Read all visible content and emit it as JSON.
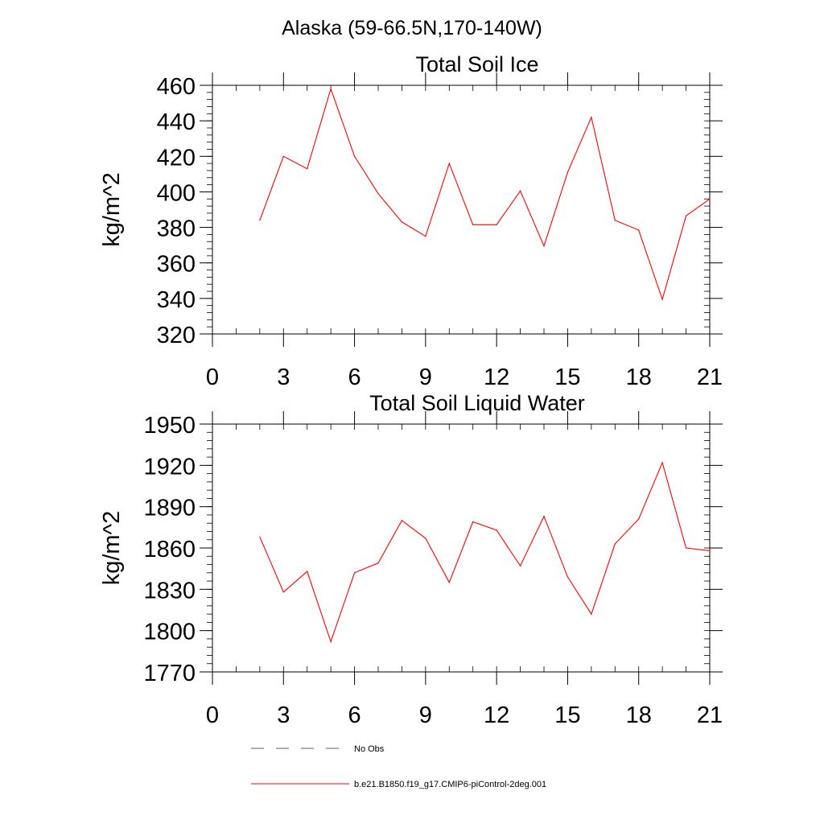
{
  "figure": {
    "suptitle": "Alaska (59-66.5N,170-140W)"
  },
  "chart_data": [
    {
      "type": "line",
      "title": "Total Soil Ice",
      "xlabel": "",
      "ylabel": "kg/m^2",
      "xlim": [
        0,
        21
      ],
      "ylim": [
        320,
        460
      ],
      "xticks": [
        0,
        3,
        6,
        9,
        12,
        15,
        18,
        21
      ],
      "yticks": [
        320,
        340,
        360,
        380,
        400,
        420,
        440,
        460
      ],
      "grid": false,
      "series": [
        {
          "name": "b.e21.B1850.f19_g17.CMIP6-piControl-2deg.001",
          "color": "#ff0000",
          "x": [
            2,
            3,
            4,
            5,
            6,
            7,
            8,
            9,
            10,
            11,
            12,
            13,
            14,
            15,
            16,
            17,
            18,
            19,
            20,
            21
          ],
          "y": [
            384,
            420,
            413,
            458,
            420,
            399,
            383,
            375,
            416,
            381.5,
            381.5,
            400.5,
            369.5,
            411,
            442,
            384,
            378.5,
            339.5,
            386.5,
            396
          ]
        }
      ]
    },
    {
      "type": "line",
      "title": "Total Soil Liquid Water",
      "xlabel": "",
      "ylabel": "kg/m^2",
      "xlim": [
        0,
        21
      ],
      "ylim": [
        1770,
        1950
      ],
      "xticks": [
        0,
        3,
        6,
        9,
        12,
        15,
        18,
        21
      ],
      "yticks": [
        1770,
        1800,
        1830,
        1860,
        1890,
        1920,
        1950
      ],
      "grid": false,
      "series": [
        {
          "name": "b.e21.B1850.f19_g17.CMIP6-piControl-2deg.001",
          "color": "#ff0000",
          "x": [
            2,
            3,
            4,
            5,
            6,
            7,
            8,
            9,
            10,
            11,
            12,
            13,
            14,
            15,
            16,
            17,
            18,
            19,
            20,
            21
          ],
          "y": [
            1868,
            1828,
            1843,
            1792,
            1842,
            1849,
            1880,
            1867,
            1835,
            1879,
            1873,
            1847,
            1883,
            1839,
            1812,
            1863,
            1881,
            1922,
            1860,
            1858
          ]
        }
      ]
    }
  ],
  "legend": {
    "placement": "bottom-left",
    "items": [
      {
        "label": "No Obs",
        "color": "#5a5a8c",
        "style": "dashed"
      },
      {
        "label": "b.e21.B1850.f19_g17.CMIP6-piControl-2deg.001",
        "color": "#ff0000",
        "style": "solid"
      }
    ]
  }
}
